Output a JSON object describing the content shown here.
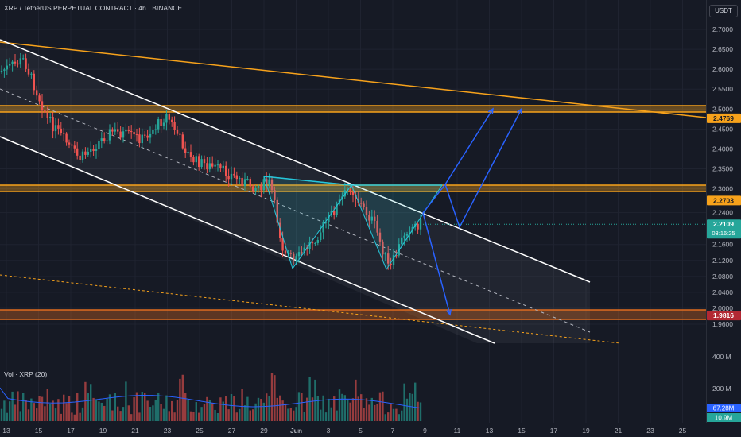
{
  "header": {
    "title": "XRP / TetherUS PERPETUAL CONTRACT · 4h · BINANCE",
    "currency_badge": "USDT"
  },
  "volume": {
    "title": "Vol · XRP (20)",
    "axis_labels": [
      "400 M",
      "200 M"
    ],
    "badges": [
      {
        "text": "67.28M",
        "color": "#2962ff"
      },
      {
        "text": "10.9M",
        "color": "#26a69a"
      }
    ]
  },
  "price_axis": {
    "ticks": [
      "2.7000",
      "2.6500",
      "2.6000",
      "2.5500",
      "2.5000",
      "2.4500",
      "2.4000",
      "2.3500",
      "2.3000",
      "2.2400",
      "2.1600",
      "2.1200",
      "2.0800",
      "2.0400",
      "2.0000",
      "1.9600"
    ]
  },
  "price_badges": [
    {
      "text": "2.4769",
      "value": 2.4769,
      "bg": "#f7a21b",
      "fg": "#161a25"
    },
    {
      "text": "2.2703",
      "value": 2.2703,
      "bg": "#f7a21b",
      "fg": "#161a25"
    },
    {
      "text": "2.2109",
      "value": 2.2109,
      "bg": "#26a69a",
      "fg": "#ffffff",
      "countdown": "03:16:25"
    },
    {
      "text": "1.9816",
      "value": 1.9816,
      "bg": "#b22833",
      "fg": "#ffffff"
    }
  ],
  "time_axis": {
    "labels": [
      "13",
      "15",
      "17",
      "19",
      "21",
      "23",
      "25",
      "27",
      "29",
      "Jun",
      "3",
      "5",
      "7",
      "9",
      "11",
      "13",
      "15",
      "17",
      "19",
      "21",
      "23",
      "25"
    ]
  },
  "colors": {
    "background": "#161a25",
    "grid": "#1f2330",
    "up": "#26a69a",
    "down": "#ef5350",
    "level_orange": "#f7a21b",
    "channel": "#ffffff",
    "pattern": "#26c6da",
    "arrow": "#2962ff"
  }
}
